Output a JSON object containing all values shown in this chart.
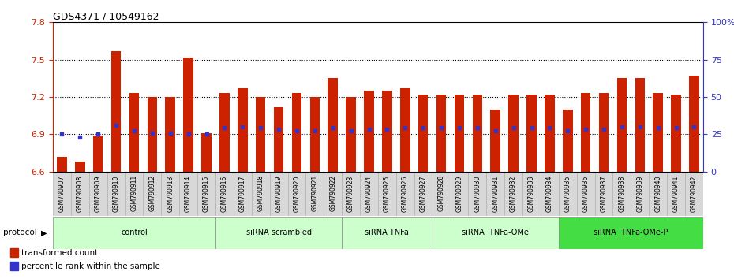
{
  "title": "GDS4371 / 10549162",
  "samples": [
    "GSM790907",
    "GSM790908",
    "GSM790909",
    "GSM790910",
    "GSM790911",
    "GSM790912",
    "GSM790913",
    "GSM790914",
    "GSM790915",
    "GSM790916",
    "GSM790917",
    "GSM790918",
    "GSM790919",
    "GSM790920",
    "GSM790921",
    "GSM790922",
    "GSM790923",
    "GSM790924",
    "GSM790925",
    "GSM790926",
    "GSM790927",
    "GSM790928",
    "GSM790929",
    "GSM790930",
    "GSM790931",
    "GSM790932",
    "GSM790933",
    "GSM790934",
    "GSM790935",
    "GSM790936",
    "GSM790937",
    "GSM790938",
    "GSM790939",
    "GSM790940",
    "GSM790941",
    "GSM790942"
  ],
  "bar_values": [
    6.72,
    6.68,
    6.89,
    7.57,
    7.23,
    7.2,
    7.2,
    7.52,
    6.91,
    7.23,
    7.27,
    7.2,
    7.12,
    7.23,
    7.2,
    7.35,
    7.2,
    7.25,
    7.25,
    7.27,
    7.22,
    7.22,
    7.22,
    7.22,
    7.1,
    7.22,
    7.22,
    7.22,
    7.1,
    7.23,
    7.23,
    7.35,
    7.35,
    7.23,
    7.22,
    7.37
  ],
  "percentile_values": [
    6.9,
    6.88,
    6.9,
    6.97,
    6.93,
    6.91,
    6.91,
    6.9,
    6.9,
    6.95,
    6.96,
    6.95,
    6.94,
    6.93,
    6.93,
    6.95,
    6.93,
    6.94,
    6.94,
    6.95,
    6.95,
    6.95,
    6.95,
    6.95,
    6.93,
    6.95,
    6.95,
    6.95,
    6.93,
    6.94,
    6.94,
    6.96,
    6.96,
    6.95,
    6.95,
    6.96
  ],
  "groups": [
    {
      "label": "control",
      "start": 0,
      "end": 9,
      "color": "#ccffcc"
    },
    {
      "label": "siRNA scrambled",
      "start": 9,
      "end": 16,
      "color": "#ccffcc"
    },
    {
      "label": "siRNA TNFa",
      "start": 16,
      "end": 21,
      "color": "#ccffcc"
    },
    {
      "label": "siRNA  TNFa-OMe",
      "start": 21,
      "end": 28,
      "color": "#ccffcc"
    },
    {
      "label": "siRNA  TNFa-OMe-P",
      "start": 28,
      "end": 36,
      "color": "#44dd44"
    }
  ],
  "ylim_left": [
    6.6,
    7.8
  ],
  "ylim_right": [
    0,
    100
  ],
  "yticks_left": [
    6.6,
    6.9,
    7.2,
    7.5,
    7.8
  ],
  "yticks_right": [
    0,
    25,
    50,
    75,
    100
  ],
  "ytick_right_labels": [
    "0",
    "25",
    "50",
    "75",
    "100%"
  ],
  "bar_color": "#cc2200",
  "dot_color": "#3333cc",
  "axis_color_left": "#cc2200",
  "axis_color_right": "#3333cc",
  "grid_levels": [
    6.9,
    7.2,
    7.5
  ],
  "bar_bottom": 6.6
}
